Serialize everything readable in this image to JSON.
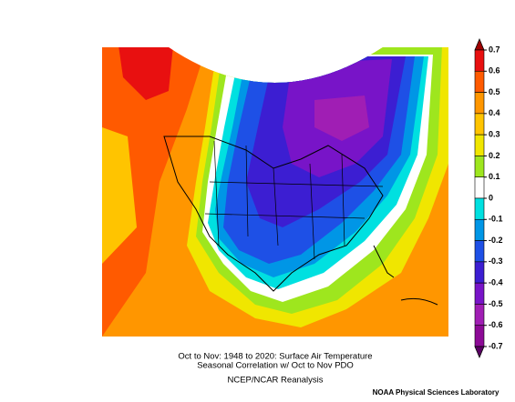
{
  "title": "Oct to Nov: 1948 to 2020: Surface Air Temperature",
  "subtitle": "Seasonal Correlation w/ Oct to Nov PDO",
  "source": "NCEP/NCAR Reanalysis",
  "credit": "NOAA Physical Sciences Laboratory",
  "colorbar": {
    "ticks": [
      0.7,
      0.6,
      0.5,
      0.4,
      0.3,
      0.2,
      0.1,
      0,
      -0.1,
      -0.2,
      -0.3,
      -0.4,
      -0.5,
      -0.6,
      -0.7
    ],
    "colors": [
      "#a00000",
      "#e81010",
      "#ff5a00",
      "#ff9600",
      "#ffc400",
      "#f0e600",
      "#9ee61e",
      "#ffffff",
      "#00e0e0",
      "#0096e6",
      "#1e50e6",
      "#3c1ed2",
      "#7814c8",
      "#a01eb4",
      "#8c0a96",
      "#5a0064"
    ]
  }
}
